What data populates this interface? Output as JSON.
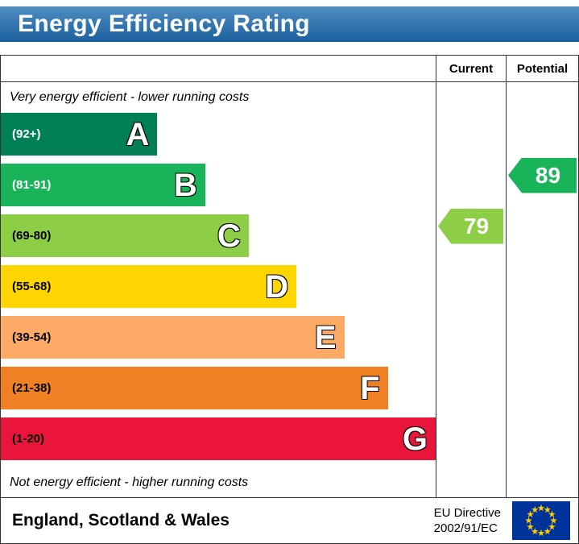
{
  "title": "Energy Efficiency Rating",
  "header": {
    "current": "Current",
    "potential": "Potential"
  },
  "chart_data": {
    "type": "bar",
    "title": "Energy Efficiency Rating",
    "annotations": {
      "top": "Very energy efficient - lower running costs",
      "bottom": "Not energy efficient - higher running costs"
    },
    "bands": [
      {
        "letter": "A",
        "range": "(92+)",
        "color": "#008054",
        "label_color": "#ffffff",
        "width_pct": 36
      },
      {
        "letter": "B",
        "range": "(81-91)",
        "color": "#19b459",
        "label_color": "#ffffff",
        "width_pct": 47
      },
      {
        "letter": "C",
        "range": "(69-80)",
        "color": "#8dce46",
        "label_color": "#000000",
        "width_pct": 57
      },
      {
        "letter": "D",
        "range": "(55-68)",
        "color": "#ffd500",
        "label_color": "#000000",
        "width_pct": 68
      },
      {
        "letter": "E",
        "range": "(39-54)",
        "color": "#fcaa65",
        "label_color": "#000000",
        "width_pct": 79
      },
      {
        "letter": "F",
        "range": "(21-38)",
        "color": "#ef8023",
        "label_color": "#000000",
        "width_pct": 89
      },
      {
        "letter": "G",
        "range": "(1-20)",
        "color": "#e9153b",
        "label_color": "#000000",
        "width_pct": 100
      }
    ],
    "current": {
      "label": "Current",
      "value": 79,
      "band": "C",
      "band_index": 2,
      "color": "#8dce46"
    },
    "potential": {
      "label": "Potential",
      "value": 89,
      "band": "B",
      "band_index": 1,
      "color": "#19b459"
    }
  },
  "footer": {
    "region": "England, Scotland & Wales",
    "directive_line1": "EU Directive",
    "directive_line2": "2002/91/EC",
    "eu_flag": {
      "background": "#003399",
      "star_color": "#ffcc00"
    }
  },
  "colors": {
    "title_bar": "#1e6cb0",
    "title_text": "#ffffff",
    "border": "#333333"
  }
}
